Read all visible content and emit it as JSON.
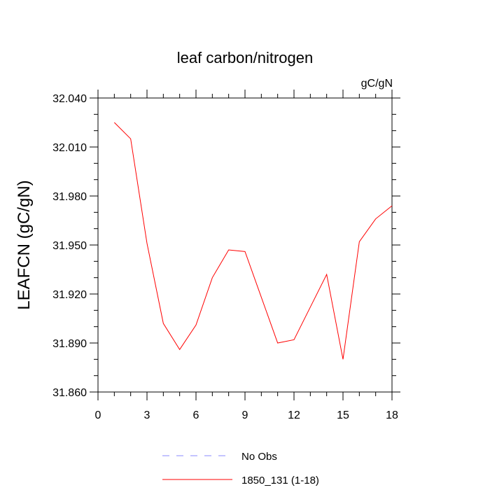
{
  "chart_data": {
    "type": "line",
    "title": "leaf carbon/nitrogen",
    "units": "gC/gN",
    "ylabel": "LEAFCN  (gC/gN)",
    "xlabel": "",
    "xlim": [
      0,
      18
    ],
    "ylim": [
      31.86,
      32.04
    ],
    "xticks": [
      0,
      3,
      6,
      9,
      12,
      15,
      18
    ],
    "yticks": [
      31.86,
      31.89,
      31.92,
      31.95,
      31.98,
      32.01,
      32.04
    ],
    "ytick_labels": [
      "31.860",
      "31.890",
      "31.920",
      "31.950",
      "31.980",
      "32.010",
      "32.040"
    ],
    "grid": false,
    "legend_position": "bottom",
    "series": [
      {
        "name": "1850_131 (1-18)",
        "color": "#ff0000",
        "style": "solid",
        "x": [
          1,
          2,
          3,
          4,
          5,
          6,
          7,
          8,
          9,
          10,
          11,
          12,
          13,
          14,
          15,
          16,
          17,
          18
        ],
        "values": [
          32.025,
          32.015,
          31.951,
          31.902,
          31.886,
          31.901,
          31.93,
          31.947,
          31.946,
          31.918,
          31.89,
          31.892,
          31.912,
          31.932,
          31.88,
          31.952,
          31.966,
          31.974
        ]
      }
    ],
    "legend": [
      {
        "label": "No Obs",
        "color": "#8a8aff",
        "style": "dashed"
      },
      {
        "label": "1850_131 (1-18)",
        "color": "#ff0000",
        "style": "solid"
      }
    ]
  }
}
